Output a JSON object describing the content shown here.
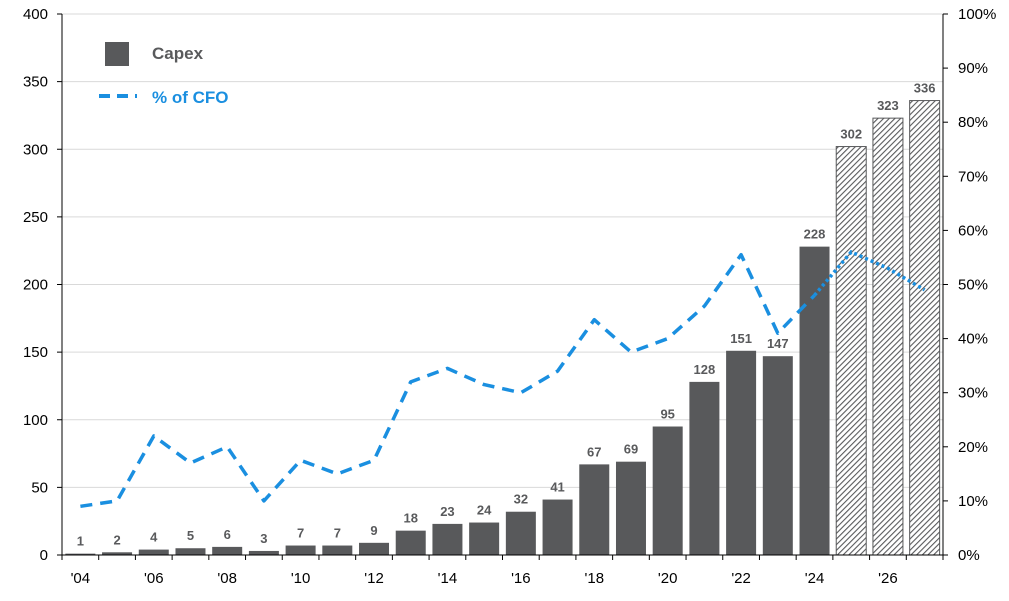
{
  "chart_data": {
    "type": "bar",
    "categories": [
      "'04",
      "'05",
      "'06",
      "'07",
      "'08",
      "'09",
      "'10",
      "'11",
      "'12",
      "'13",
      "'14",
      "'15",
      "'16",
      "'17",
      "'18",
      "'19",
      "'20",
      "'21",
      "'22",
      "'23",
      "'24",
      "'25",
      "'26",
      "'27"
    ],
    "x_tick_labels": [
      "'04",
      "'06",
      "'08",
      "'10",
      "'12",
      "'14",
      "'16",
      "'18",
      "'20",
      "'22",
      "'24",
      "'26"
    ],
    "series": [
      {
        "name": "Capex",
        "kind": "bar",
        "axis": "left",
        "color": "#58595b",
        "values": [
          1,
          2,
          4,
          5,
          6,
          3,
          7,
          7,
          9,
          18,
          23,
          24,
          32,
          41,
          67,
          69,
          95,
          128,
          151,
          147,
          228,
          302,
          323,
          336
        ],
        "data_labels": [
          "1",
          "2",
          "4",
          "5",
          "6",
          "3",
          "7",
          "7",
          "9",
          "18",
          "23",
          "24",
          "32",
          "41",
          "67",
          "69",
          "95",
          "128",
          "151",
          "147",
          "228",
          "302",
          "323",
          "336"
        ],
        "hatched_categories": [
          "'25",
          "'26",
          "'27"
        ]
      },
      {
        "name": "% of CFO",
        "kind": "line",
        "axis": "right",
        "color": "#1a8fe0",
        "style": "dashed",
        "projected_style": "dotted",
        "values": [
          9,
          10,
          22,
          17,
          20,
          10,
          17.5,
          15,
          17.5,
          32,
          34.5,
          31.5,
          30,
          34,
          43.5,
          37.5,
          40,
          46,
          55.5,
          41,
          48,
          56,
          53,
          49
        ]
      }
    ],
    "y_left": {
      "ylim": [
        0,
        400
      ],
      "ticks": [
        "0",
        "50",
        "100",
        "150",
        "200",
        "250",
        "300",
        "350",
        "400"
      ]
    },
    "y_right": {
      "ylim": [
        0,
        100
      ],
      "ticks": [
        "0%",
        "10%",
        "20%",
        "30%",
        "40%",
        "50%",
        "60%",
        "70%",
        "80%",
        "90%",
        "100%"
      ]
    },
    "grid": true,
    "legend": {
      "placement": "top-left"
    },
    "title": "",
    "xlabel": "",
    "ylabel": ""
  }
}
